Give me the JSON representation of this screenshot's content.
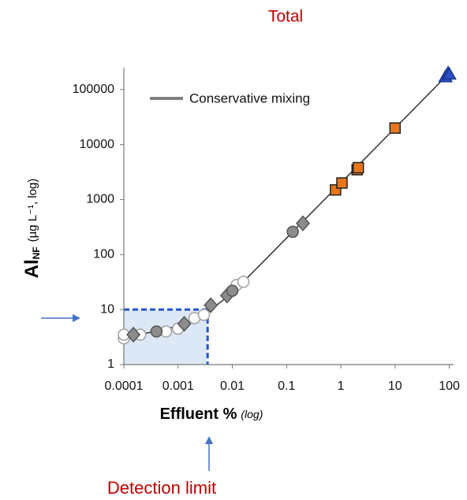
{
  "chart_data": {
    "type": "scatter",
    "title": "Total",
    "xlabel": "Effluent %",
    "xlabel_note": "(log)",
    "ylabel": "Al",
    "ylabel_sub": "NF",
    "ylabel_note": "(µg L⁻¹, log)",
    "xscale": "log",
    "yscale": "log",
    "xlim": [
      0.0001,
      120
    ],
    "ylim": [
      1,
      250000
    ],
    "xticks": [
      0.0001,
      0.001,
      0.01,
      0.1,
      1,
      10,
      100
    ],
    "yticks": [
      1,
      10,
      100,
      1000,
      10000,
      100000
    ],
    "legend_loc": "upper left",
    "line": {
      "name": "Conservative mixing",
      "color": "#333333",
      "legend_color": "#808080",
      "x": [
        0.0001,
        0.001,
        0.003,
        0.01,
        0.1,
        1,
        10,
        100
      ],
      "y": [
        3,
        5,
        8,
        20,
        200,
        2000,
        20000,
        200000
      ]
    },
    "series": [
      {
        "marker": "circle",
        "color": "#ffffff",
        "edge": "#a0a0a0",
        "x": [
          0.0001,
          0.0001,
          0.0002,
          0.0006,
          0.001,
          0.002,
          0.003,
          0.012,
          0.016
        ],
        "y": [
          3,
          3.5,
          3.5,
          4,
          4.5,
          7,
          8,
          28,
          32
        ]
      },
      {
        "marker": "diamond",
        "color": "#8c8c8c",
        "edge": "#555555",
        "x": [
          0.00015,
          0.0013,
          0.004,
          0.008,
          0.2
        ],
        "y": [
          3.5,
          5.5,
          12,
          18,
          370
        ]
      },
      {
        "marker": "circle",
        "color": "#8c8c8c",
        "edge": "#555555",
        "x": [
          0.0004,
          0.01,
          0.13
        ],
        "y": [
          4,
          22,
          260
        ]
      },
      {
        "marker": "square",
        "color": "#e8761e",
        "edge": "#222222",
        "x": [
          0.8,
          1.05,
          2,
          2.1,
          10
        ],
        "y": [
          1500,
          2000,
          3500,
          3800,
          20000
        ]
      },
      {
        "marker": "triangle",
        "color": "#2a4fbf",
        "edge": "#1a3590",
        "x": [
          85,
          95,
          100
        ],
        "y": [
          170000,
          200000,
          190000
        ]
      }
    ],
    "detection_limit": {
      "label": "Detection limit",
      "x": 0.0035,
      "y": 10,
      "color": "#2255cc",
      "fill": "#dce8f6"
    },
    "annotation_color": "#c00000",
    "arrow_color": "#4472c4"
  }
}
